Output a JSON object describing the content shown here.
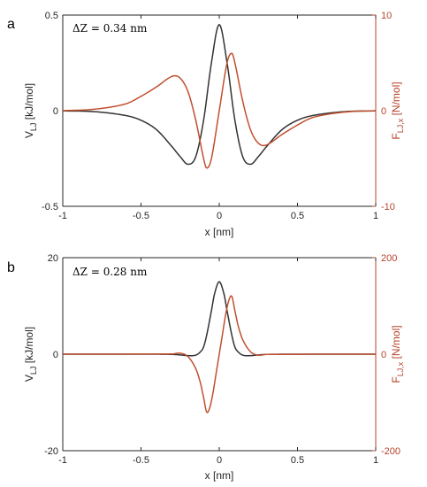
{
  "chart_data": [
    {
      "type": "line",
      "panel_label": "a",
      "annotation": "ΔZ = 0.34 nm",
      "xlabel": "x [nm]",
      "ylabel_left": {
        "main": "V",
        "sub": "LJ",
        "unit": " [kJ/mol]"
      },
      "ylabel_right": {
        "main": "F",
        "sub": "LJ,x",
        "unit": " [N/mol]"
      },
      "xlim": [
        -1,
        1
      ],
      "ylim_left": [
        -0.5,
        0.5
      ],
      "ylim_right": [
        -10,
        10
      ],
      "x_ticks": [
        "-1",
        "-0.5",
        "0",
        "0.5",
        "1"
      ],
      "y_left_ticks": [
        "-0.5",
        "0",
        "0.5"
      ],
      "y_right_ticks": [
        "-10",
        "0",
        "10"
      ],
      "grid": false,
      "series": [
        {
          "axis": "left",
          "color": "#333333",
          "x": [
            -1.0,
            -0.8,
            -0.6,
            -0.5,
            -0.4,
            -0.3,
            -0.25,
            -0.2,
            -0.15,
            -0.1,
            -0.05,
            0.0,
            0.05,
            0.1,
            0.15,
            0.2,
            0.25,
            0.3,
            0.4,
            0.5,
            0.6,
            0.8,
            1.0
          ],
          "y": [
            -0.001,
            -0.005,
            -0.025,
            -0.05,
            -0.1,
            -0.19,
            -0.24,
            -0.28,
            -0.24,
            -0.05,
            0.25,
            0.45,
            0.25,
            -0.05,
            -0.24,
            -0.28,
            -0.24,
            -0.19,
            -0.1,
            -0.05,
            -0.025,
            -0.005,
            -0.001
          ]
        },
        {
          "axis": "right",
          "color": "#c0502f",
          "x": [
            -1.0,
            -0.8,
            -0.6,
            -0.5,
            -0.4,
            -0.3,
            -0.25,
            -0.2,
            -0.15,
            -0.1,
            -0.08,
            -0.05,
            0.0,
            0.05,
            0.08,
            0.1,
            0.15,
            0.2,
            0.25,
            0.3,
            0.4,
            0.5,
            0.6,
            0.8,
            1.0
          ],
          "y": [
            0.0,
            0.15,
            0.7,
            1.5,
            2.5,
            3.6,
            3.4,
            2.0,
            -1.0,
            -5.0,
            -6.0,
            -5.0,
            0.0,
            5.0,
            6.0,
            5.0,
            1.0,
            -2.0,
            -3.4,
            -3.6,
            -2.5,
            -1.5,
            -0.7,
            -0.15,
            0.0
          ]
        }
      ]
    },
    {
      "type": "line",
      "panel_label": "b",
      "annotation": "ΔZ = 0.28 nm",
      "xlabel": "x [nm]",
      "ylabel_left": {
        "main": "V",
        "sub": "LJ",
        "unit": " [kJ/mol]"
      },
      "ylabel_right": {
        "main": "F",
        "sub": "LJ,x",
        "unit": " [N/mol]"
      },
      "xlim": [
        -1,
        1
      ],
      "ylim_left": [
        -20,
        20
      ],
      "ylim_right": [
        -200,
        200
      ],
      "x_ticks": [
        "-1",
        "-0.5",
        "0",
        "0.5",
        "1"
      ],
      "y_left_ticks": [
        "-20",
        "0",
        "20"
      ],
      "y_right_ticks": [
        "-200",
        "0",
        "200"
      ],
      "grid": false,
      "series": [
        {
          "axis": "left",
          "color": "#333333",
          "x": [
            -1.0,
            -0.4,
            -0.3,
            -0.25,
            -0.2,
            -0.15,
            -0.12,
            -0.1,
            -0.08,
            -0.05,
            -0.03,
            0.0,
            0.03,
            0.05,
            0.08,
            0.1,
            0.12,
            0.15,
            0.2,
            0.25,
            0.3,
            0.4,
            1.0
          ],
          "y": [
            0.0,
            -0.01,
            -0.05,
            -0.15,
            -0.3,
            -0.2,
            0.5,
            1.5,
            4.0,
            9.0,
            12.5,
            15.0,
            12.5,
            9.0,
            4.0,
            1.5,
            0.5,
            -0.2,
            -0.3,
            -0.15,
            -0.05,
            -0.01,
            0.0
          ]
        },
        {
          "axis": "right",
          "color": "#c0502f",
          "x": [
            -1.0,
            -0.3,
            -0.25,
            -0.2,
            -0.15,
            -0.12,
            -0.1,
            -0.08,
            -0.06,
            -0.04,
            -0.02,
            0.0,
            0.02,
            0.04,
            0.06,
            0.08,
            0.1,
            0.12,
            0.15,
            0.2,
            0.25,
            0.3,
            1.0
          ],
          "y": [
            0.0,
            0.5,
            2.0,
            -5.0,
            -30.0,
            -60.0,
            -90.0,
            -120.0,
            -110.0,
            -80.0,
            -40.0,
            0.0,
            40.0,
            80.0,
            110.0,
            120.0,
            90.0,
            60.0,
            30.0,
            5.0,
            -2.0,
            -0.5,
            0.0
          ]
        }
      ]
    }
  ]
}
